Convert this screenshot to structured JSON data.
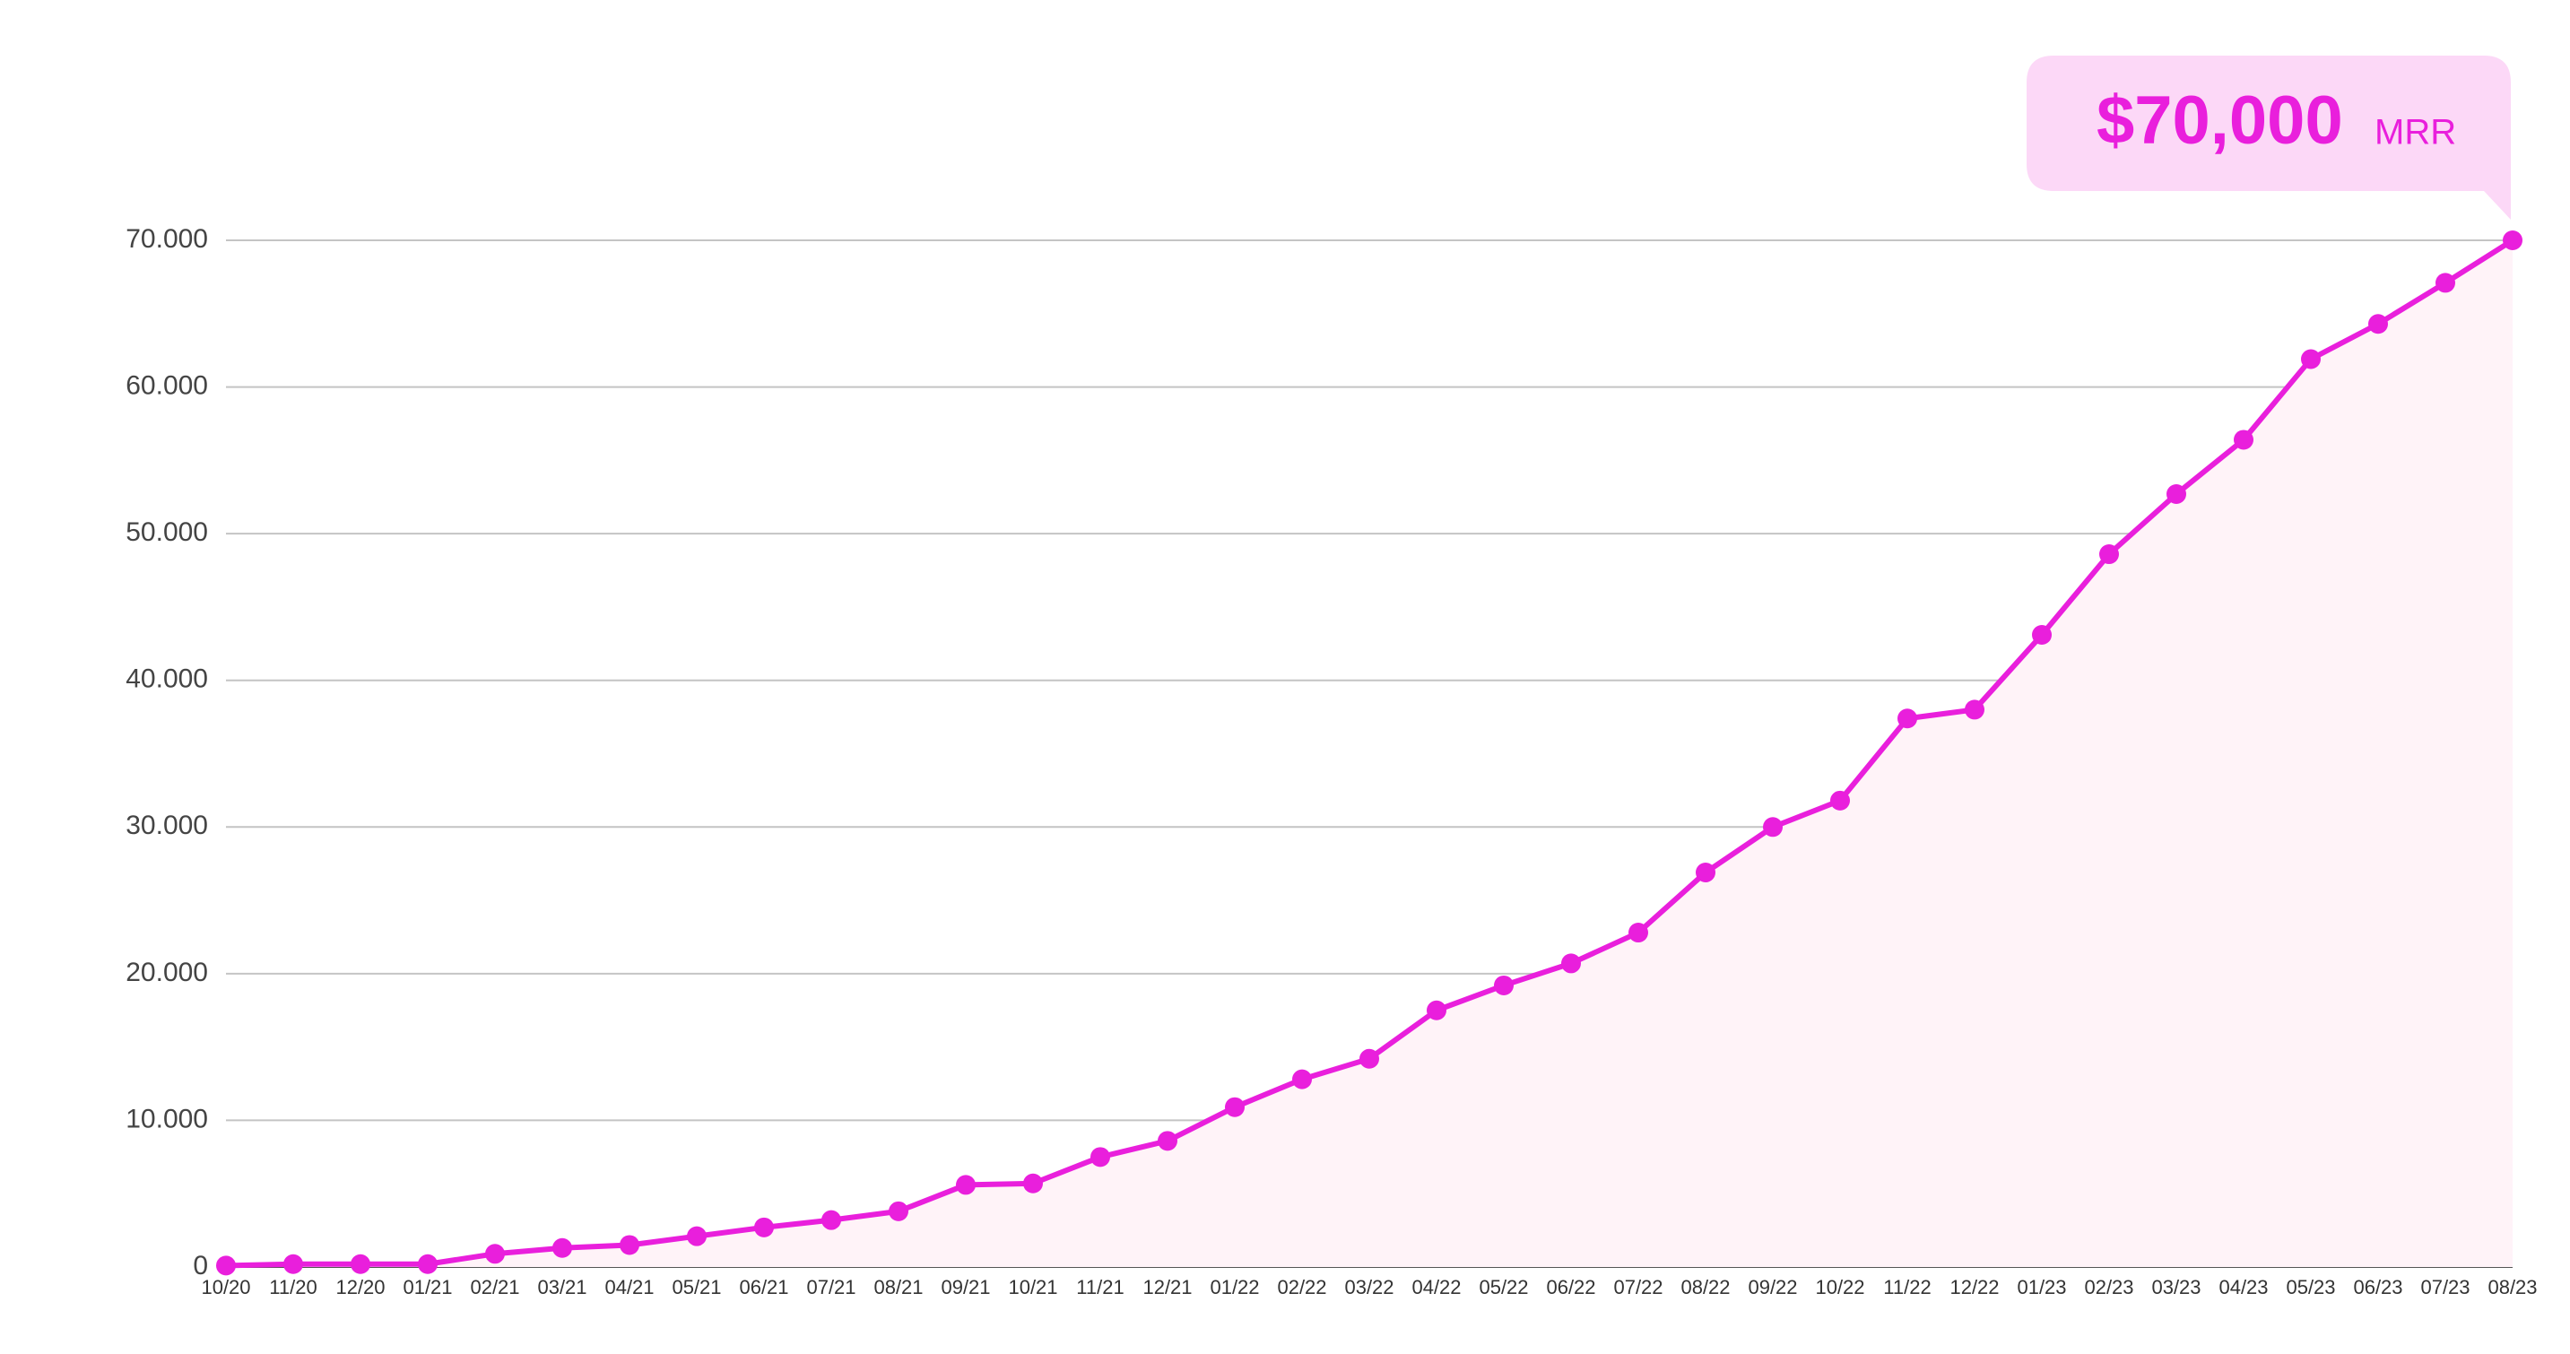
{
  "chart_data": {
    "type": "line",
    "annotation": "$70,000",
    "annotation_unit": "MRR",
    "categories": [
      "10/20",
      "11/20",
      "12/20",
      "01/21",
      "02/21",
      "03/21",
      "04/21",
      "05/21",
      "06/21",
      "07/21",
      "08/21",
      "09/21",
      "10/21",
      "11/21",
      "12/21",
      "01/22",
      "02/22",
      "03/22",
      "04/22",
      "05/22",
      "06/22",
      "07/22",
      "08/22",
      "09/22",
      "10/22",
      "11/22",
      "12/22",
      "01/23",
      "02/23",
      "03/23",
      "04/23",
      "05/23",
      "06/23",
      "07/23",
      "08/23"
    ],
    "values": [
      100,
      200,
      200,
      200,
      900,
      1300,
      1500,
      2100,
      2700,
      3200,
      3800,
      5600,
      5700,
      7500,
      8600,
      10900,
      12800,
      14200,
      17500,
      19200,
      20700,
      22800,
      26900,
      30000,
      31800,
      37400,
      38000,
      43100,
      48600,
      52700,
      56400,
      61900,
      64300,
      67100,
      70000
    ],
    "color": "#e91fdc",
    "area_color": "#fff3f8",
    "ylim": [
      0,
      70000
    ],
    "yticks": [
      0,
      {
        "value": 10000,
        "label": "10.000"
      },
      {
        "value": 20000,
        "label": "20.000"
      },
      {
        "value": 30000,
        "label": "30.000"
      },
      {
        "value": 40000,
        "label": "40.000"
      },
      {
        "value": 50000,
        "label": "50.000"
      },
      {
        "value": 60000,
        "label": "60.000"
      },
      {
        "value": 70000,
        "label": "70.000"
      }
    ],
    "grid": true
  }
}
